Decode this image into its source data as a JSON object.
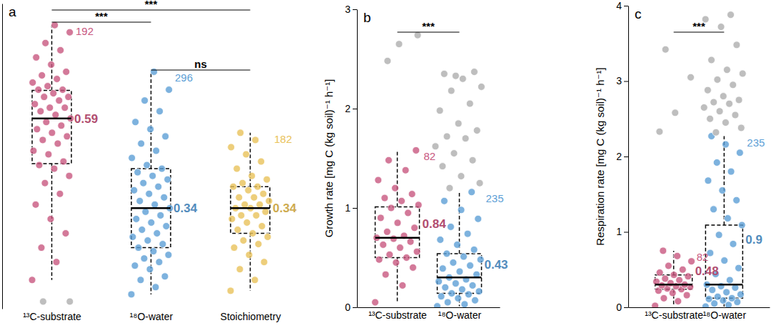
{
  "chart_data": [
    {
      "type": "box",
      "title": "a",
      "tick_labels": "x",
      "ylim": [
        0.06,
        0.91
      ],
      "yticks": [],
      "categories": [
        "¹³C-substrate",
        "¹⁸O-water",
        "Stoichiometry"
      ],
      "colors": [
        "#c8577f",
        "#5d9fd6",
        "#e9c25a"
      ],
      "outlier_color": "#b3b3b3",
      "boxes": [
        {
          "min": 0.14,
          "q1": 0.464,
          "median": 0.59,
          "q3": 0.668,
          "max": 0.85
        },
        {
          "min": 0.1,
          "q1": 0.23,
          "median": 0.34,
          "q3": 0.45,
          "max": 0.72
        },
        {
          "min": 0.11,
          "q1": 0.27,
          "median": 0.34,
          "q3": 0.4,
          "max": 0.55
        }
      ],
      "points": [
        [
          0.14,
          0.19,
          0.23,
          0.27,
          0.31,
          0.35,
          0.38,
          0.41,
          0.43,
          0.45,
          0.46,
          0.47,
          0.49,
          0.5,
          0.52,
          0.53,
          0.54,
          0.55,
          0.56,
          0.57,
          0.58,
          0.59,
          0.6,
          0.61,
          0.62,
          0.62,
          0.63,
          0.64,
          0.65,
          0.65,
          0.66,
          0.67,
          0.67,
          0.68,
          0.69,
          0.7,
          0.71,
          0.72,
          0.74,
          0.76,
          0.78,
          0.8,
          0.83,
          0.85
        ],
        [
          0.1,
          0.12,
          0.14,
          0.15,
          0.17,
          0.18,
          0.19,
          0.2,
          0.21,
          0.22,
          0.23,
          0.24,
          0.25,
          0.26,
          0.27,
          0.28,
          0.29,
          0.3,
          0.31,
          0.32,
          0.33,
          0.34,
          0.35,
          0.36,
          0.37,
          0.38,
          0.39,
          0.4,
          0.41,
          0.42,
          0.43,
          0.44,
          0.45,
          0.46,
          0.48,
          0.5,
          0.52,
          0.54,
          0.56,
          0.58,
          0.61,
          0.64,
          0.67,
          0.72
        ],
        [
          0.11,
          0.14,
          0.17,
          0.19,
          0.21,
          0.23,
          0.24,
          0.25,
          0.26,
          0.27,
          0.28,
          0.29,
          0.3,
          0.31,
          0.32,
          0.32,
          0.33,
          0.34,
          0.34,
          0.35,
          0.35,
          0.36,
          0.37,
          0.37,
          0.38,
          0.39,
          0.4,
          0.4,
          0.41,
          0.42,
          0.43,
          0.45,
          0.47,
          0.49,
          0.51,
          0.53,
          0.55
        ]
      ],
      "outliers": [
        [
          0.08,
          0.08
        ],
        [],
        []
      ],
      "n_labels": [
        192,
        296,
        182
      ],
      "annotations": [
        0.59,
        0.34,
        0.34
      ],
      "significance": [
        {
          "from": 0,
          "to": 1,
          "label": "***"
        },
        {
          "from": 0,
          "to": 2,
          "label": "***"
        },
        {
          "from": 1,
          "to": 2,
          "label": "ns"
        }
      ]
    },
    {
      "type": "box",
      "title": "b",
      "y_label": "Growth rate [mg C (kg soil)⁻¹ h⁻¹]",
      "ylim": [
        0,
        3
      ],
      "yticks": [
        0,
        1,
        2,
        3
      ],
      "categories": [
        "¹³C-substrate",
        "¹⁸O-water"
      ],
      "colors": [
        "#c8577f",
        "#5d9fd6"
      ],
      "outlier_color": "#b3b3b3",
      "boxes": [
        {
          "min": 0.05,
          "q1": 0.5,
          "median": 0.7,
          "q3": 1.01,
          "max": 1.58
        },
        {
          "min": 0.01,
          "q1": 0.14,
          "median": 0.3,
          "q3": 0.54,
          "max": 1.16
        }
      ],
      "points": [
        [
          0.05,
          0.22,
          0.33,
          0.4,
          0.45,
          0.48,
          0.5,
          0.53,
          0.56,
          0.6,
          0.63,
          0.66,
          0.69,
          0.7,
          0.72,
          0.76,
          0.8,
          0.85,
          0.9,
          0.95,
          1.0,
          1.03,
          1.07,
          1.1,
          1.14,
          1.2,
          1.28,
          1.38,
          1.48,
          1.58
        ],
        [
          0.01,
          0.03,
          0.05,
          0.07,
          0.09,
          0.11,
          0.13,
          0.14,
          0.16,
          0.18,
          0.2,
          0.22,
          0.24,
          0.26,
          0.28,
          0.3,
          0.33,
          0.36,
          0.39,
          0.42,
          0.45,
          0.48,
          0.51,
          0.54,
          0.58,
          0.63,
          0.68,
          0.74,
          0.81,
          0.89,
          0.98,
          1.07,
          1.16
        ]
      ],
      "outliers": [
        [
          2.48,
          2.74,
          2.65
        ],
        [
          1.2,
          1.25,
          1.32,
          1.42,
          1.48,
          1.55,
          1.62,
          1.7,
          1.72,
          1.78,
          1.85,
          1.98,
          2.05,
          2.18,
          2.22,
          2.3,
          2.35,
          2.37,
          2.33
        ]
      ],
      "n_labels": [
        82,
        235
      ],
      "annotations": [
        0.84,
        0.43
      ],
      "significance": [
        {
          "from": 0,
          "to": 1,
          "label": "***"
        }
      ]
    },
    {
      "type": "box",
      "title": "c",
      "y_label": "Respiration rate [mg C (kg soil)⁻¹ h⁻¹]",
      "ylim": [
        0,
        4
      ],
      "yticks": [
        0,
        1,
        2,
        3,
        4
      ],
      "categories": [
        "¹³C-substrate",
        "¹⁸O-water"
      ],
      "colors": [
        "#c8577f",
        "#5d9fd6"
      ],
      "outlier_color": "#b3b3b3",
      "boxes": [
        {
          "min": 0.02,
          "q1": 0.24,
          "median": 0.3,
          "q3": 0.43,
          "max": 0.75
        },
        {
          "min": 0.01,
          "q1": 0.12,
          "median": 0.3,
          "q3": 1.09,
          "max": 2.27
        }
      ],
      "points": [
        [
          0.02,
          0.08,
          0.12,
          0.16,
          0.19,
          0.22,
          0.24,
          0.25,
          0.27,
          0.28,
          0.29,
          0.3,
          0.32,
          0.34,
          0.36,
          0.38,
          0.41,
          0.43,
          0.46,
          0.5,
          0.55,
          0.61,
          0.68,
          0.75
        ],
        [
          0.01,
          0.03,
          0.05,
          0.07,
          0.09,
          0.11,
          0.12,
          0.14,
          0.17,
          0.2,
          0.23,
          0.26,
          0.28,
          0.3,
          0.36,
          0.44,
          0.52,
          0.62,
          0.72,
          0.84,
          0.96,
          1.09,
          1.18,
          1.3,
          1.42,
          1.55,
          1.68,
          1.8,
          1.92,
          2.05,
          2.16,
          2.27
        ]
      ],
      "outliers": [
        [
          3.42,
          3.05,
          2.58,
          2.33
        ],
        [
          2.32,
          2.38,
          2.45,
          2.5,
          2.55,
          2.6,
          2.65,
          2.7,
          2.72,
          2.75,
          2.8,
          2.88,
          2.95,
          3.02,
          3.1,
          3.15,
          3.28,
          3.48,
          3.72,
          3.82,
          3.88
        ]
      ],
      "n_labels": [
        82,
        235
      ],
      "annotations": [
        0.48,
        0.9
      ],
      "significance": [
        {
          "from": 0,
          "to": 1,
          "label": "***"
        }
      ]
    }
  ]
}
